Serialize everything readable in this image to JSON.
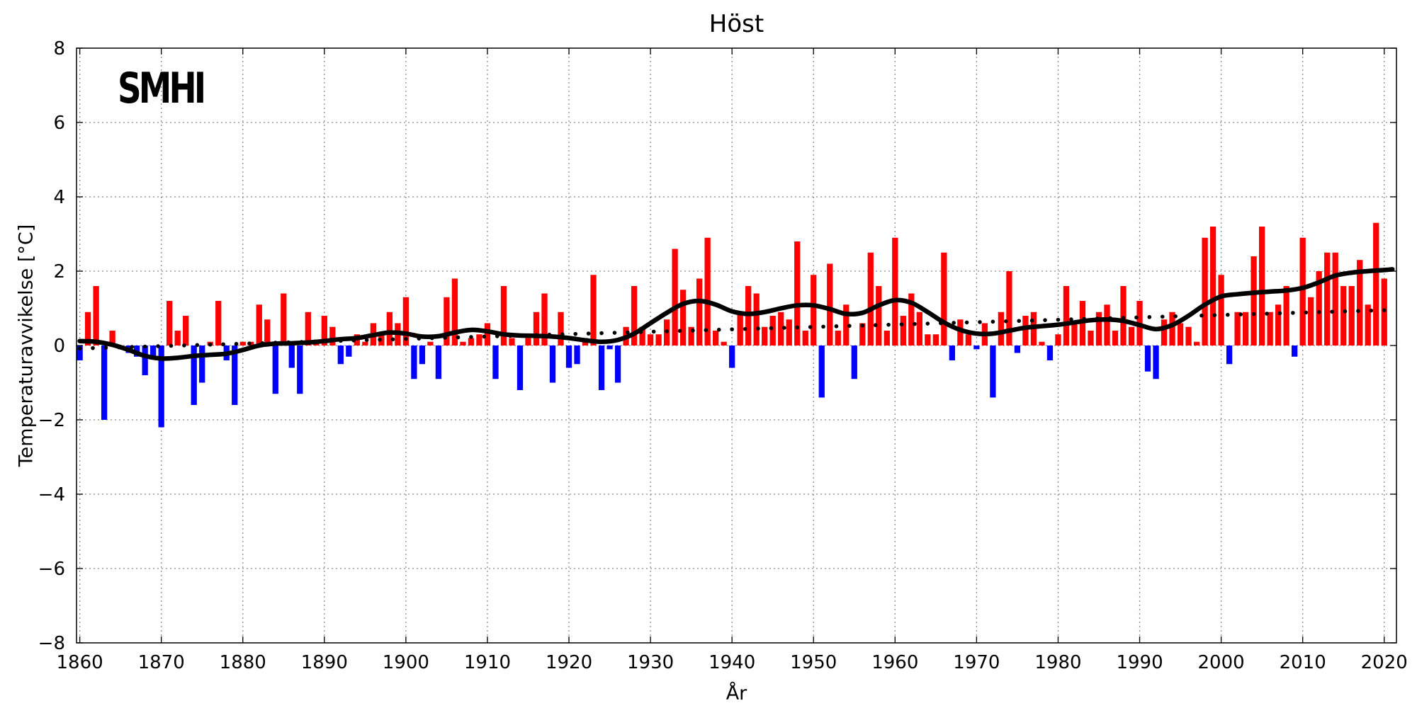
{
  "chart_data": {
    "type": "bar",
    "title": "Höst",
    "xlabel": "År",
    "ylabel": "Temperaturavvikelse [°C]",
    "logo": "SMHI",
    "xlim": [
      1859.6,
      2021.5
    ],
    "ylim": [
      -8,
      8
    ],
    "xticks": [
      1860,
      1870,
      1880,
      1890,
      1900,
      1910,
      1920,
      1930,
      1940,
      1950,
      1960,
      1970,
      1980,
      1990,
      2000,
      2010,
      2020
    ],
    "yticks": [
      8,
      6,
      4,
      2,
      0,
      -2,
      -4,
      -6,
      -8
    ],
    "ytick_labels": [
      "8",
      "6",
      "4",
      "2",
      "0",
      "−2",
      "−4",
      "−6",
      "−8"
    ],
    "grid": true,
    "colors": {
      "positive": "#ff0000",
      "negative": "#0000ff",
      "trend": "#000000"
    },
    "start_year": 1860,
    "anomalies": [
      -0.4,
      0.9,
      1.6,
      -2.0,
      0.4,
      0.0,
      -0.2,
      -0.3,
      -0.8,
      -0.3,
      -2.2,
      1.2,
      0.4,
      0.8,
      -1.6,
      -1.0,
      0.1,
      1.2,
      -0.4,
      -1.6,
      0.1,
      0.1,
      1.1,
      0.7,
      -1.3,
      1.4,
      -0.6,
      -1.3,
      0.9,
      0.1,
      0.8,
      0.5,
      -0.5,
      -0.3,
      0.3,
      0.1,
      0.6,
      0.3,
      0.9,
      0.6,
      1.3,
      -0.9,
      -0.5,
      0.1,
      -0.9,
      1.3,
      1.8,
      0.1,
      0.2,
      0.3,
      0.6,
      -0.9,
      1.6,
      0.2,
      -1.2,
      0.2,
      0.9,
      1.4,
      -1.0,
      0.9,
      -0.6,
      -0.5,
      0.2,
      1.9,
      -1.2,
      -0.1,
      -1.0,
      0.5,
      1.6,
      0.5,
      0.3,
      0.3,
      0.7,
      2.6,
      1.5,
      0.5,
      1.8,
      2.9,
      0.4,
      0.1,
      -0.6,
      0.9,
      1.6,
      1.4,
      0.5,
      0.8,
      0.9,
      0.7,
      2.8,
      0.4,
      1.9,
      -1.4,
      2.2,
      0.4,
      1.1,
      -0.9,
      0.6,
      2.5,
      1.6,
      0.4,
      2.9,
      0.8,
      1.4,
      0.9,
      0.3,
      0.3,
      2.5,
      -0.4,
      0.7,
      0.3,
      -0.1,
      0.6,
      -1.4,
      0.9,
      2.0,
      -0.2,
      0.8,
      0.9,
      0.1,
      -0.4,
      0.3,
      1.6,
      0.6,
      1.2,
      0.4,
      0.9,
      1.1,
      0.4,
      1.6,
      0.5,
      1.2,
      -0.7,
      -0.9,
      0.7,
      0.9,
      0.6,
      0.5,
      0.1,
      2.9,
      3.2,
      1.9,
      -0.5,
      0.9,
      0.9,
      2.4,
      3.2,
      0.9,
      1.1,
      1.6,
      -0.3,
      2.9,
      1.3,
      2.0,
      2.5,
      2.5,
      1.6,
      1.6,
      2.3,
      1.1,
      3.3,
      1.8
    ],
    "smoothed_trend": [
      [
        1860,
        0.12
      ],
      [
        1862,
        0.1
      ],
      [
        1864,
        0.02
      ],
      [
        1866,
        -0.12
      ],
      [
        1868,
        -0.28
      ],
      [
        1870,
        -0.35
      ],
      [
        1872,
        -0.33
      ],
      [
        1874,
        -0.28
      ],
      [
        1876,
        -0.25
      ],
      [
        1878,
        -0.22
      ],
      [
        1880,
        -0.12
      ],
      [
        1882,
        0.0
      ],
      [
        1884,
        0.05
      ],
      [
        1886,
        0.06
      ],
      [
        1888,
        0.08
      ],
      [
        1890,
        0.12
      ],
      [
        1892,
        0.17
      ],
      [
        1894,
        0.2
      ],
      [
        1896,
        0.28
      ],
      [
        1898,
        0.35
      ],
      [
        1900,
        0.32
      ],
      [
        1902,
        0.24
      ],
      [
        1904,
        0.25
      ],
      [
        1906,
        0.35
      ],
      [
        1908,
        0.42
      ],
      [
        1910,
        0.38
      ],
      [
        1912,
        0.3
      ],
      [
        1914,
        0.27
      ],
      [
        1916,
        0.26
      ],
      [
        1918,
        0.24
      ],
      [
        1920,
        0.2
      ],
      [
        1922,
        0.14
      ],
      [
        1924,
        0.1
      ],
      [
        1926,
        0.15
      ],
      [
        1928,
        0.32
      ],
      [
        1930,
        0.6
      ],
      [
        1932,
        0.88
      ],
      [
        1934,
        1.12
      ],
      [
        1936,
        1.2
      ],
      [
        1938,
        1.1
      ],
      [
        1940,
        0.92
      ],
      [
        1942,
        0.85
      ],
      [
        1944,
        0.9
      ],
      [
        1946,
        1.0
      ],
      [
        1948,
        1.08
      ],
      [
        1950,
        1.08
      ],
      [
        1952,
        0.98
      ],
      [
        1954,
        0.85
      ],
      [
        1956,
        0.88
      ],
      [
        1958,
        1.08
      ],
      [
        1960,
        1.22
      ],
      [
        1962,
        1.15
      ],
      [
        1964,
        0.9
      ],
      [
        1966,
        0.62
      ],
      [
        1968,
        0.42
      ],
      [
        1970,
        0.32
      ],
      [
        1972,
        0.32
      ],
      [
        1974,
        0.4
      ],
      [
        1976,
        0.48
      ],
      [
        1978,
        0.52
      ],
      [
        1980,
        0.56
      ],
      [
        1982,
        0.62
      ],
      [
        1984,
        0.68
      ],
      [
        1986,
        0.7
      ],
      [
        1988,
        0.66
      ],
      [
        1990,
        0.55
      ],
      [
        1992,
        0.44
      ],
      [
        1994,
        0.55
      ],
      [
        1996,
        0.8
      ],
      [
        1998,
        1.1
      ],
      [
        2000,
        1.32
      ],
      [
        2002,
        1.38
      ],
      [
        2004,
        1.42
      ],
      [
        2006,
        1.45
      ],
      [
        2008,
        1.48
      ],
      [
        2010,
        1.55
      ],
      [
        2012,
        1.7
      ],
      [
        2014,
        1.88
      ],
      [
        2016,
        1.96
      ],
      [
        2018,
        2.0
      ],
      [
        2020,
        2.03
      ],
      [
        2021,
        2.05
      ]
    ],
    "linear_trend": [
      [
        1860,
        -0.08
      ],
      [
        2020,
        0.95
      ]
    ]
  }
}
